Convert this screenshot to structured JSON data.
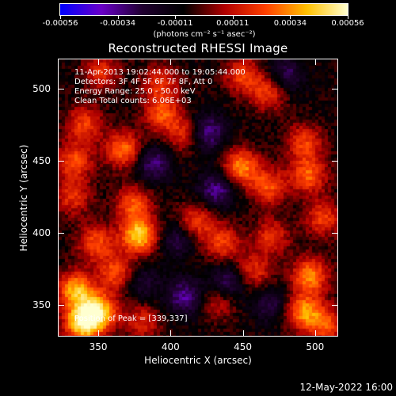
{
  "colorbar": {
    "tick_labels": [
      "-0.00056",
      "-0.00034",
      "-0.00011",
      "0.00011",
      "0.00034",
      "0.00056"
    ],
    "units": "(photons cm⁻² s⁻¹ asec⁻²)",
    "colors": [
      "#0000ff",
      "#6a00c8",
      "#200030",
      "#000000",
      "#b00000",
      "#ff4000",
      "#ffc000",
      "#ffffd0"
    ]
  },
  "plot": {
    "title": "Reconstructed RHESSI Image",
    "info_lines": [
      "11-Apr-2013 19:02:44.000 to 19:05:44.000",
      "Detectors: 3F 4F 5F 6F 7F 8F, Att 0",
      "Energy Range: 25.0 - 50.0 keV",
      "Clean     Total counts: 6.06E+03"
    ],
    "peak_text": "Position of Peak = [339,337]",
    "xlabel": "Heliocentric X (arcsec)",
    "ylabel": "Heliocentric Y (arcsec)"
  },
  "chart_data": {
    "type": "heatmap",
    "title": "Reconstructed RHESSI Image",
    "xlabel": "Heliocentric X (arcsec)",
    "ylabel": "Heliocentric Y (arcsec)",
    "xlim": [
      322,
      516
    ],
    "ylim": [
      328,
      521
    ],
    "xticks": [
      350,
      400,
      450,
      500
    ],
    "yticks": [
      350,
      400,
      450,
      500
    ],
    "color_range": [
      -0.00056,
      0.00056
    ],
    "peak_position": [
      339,
      337
    ],
    "blobs": [
      {
        "x": 339,
        "y": 337,
        "v": 1.0
      },
      {
        "x": 350,
        "y": 345,
        "v": 0.85
      },
      {
        "x": 334,
        "y": 360,
        "v": 0.8
      },
      {
        "x": 362,
        "y": 372,
        "v": 0.55
      },
      {
        "x": 348,
        "y": 393,
        "v": 0.55
      },
      {
        "x": 378,
        "y": 398,
        "v": 0.9
      },
      {
        "x": 374,
        "y": 420,
        "v": 0.55
      },
      {
        "x": 367,
        "y": 458,
        "v": 0.65
      },
      {
        "x": 333,
        "y": 450,
        "v": 0.55
      },
      {
        "x": 340,
        "y": 476,
        "v": 0.5
      },
      {
        "x": 394,
        "y": 483,
        "v": 0.55
      },
      {
        "x": 410,
        "y": 469,
        "v": 0.45
      },
      {
        "x": 418,
        "y": 408,
        "v": 0.5
      },
      {
        "x": 436,
        "y": 393,
        "v": 0.5
      },
      {
        "x": 449,
        "y": 446,
        "v": 0.7
      },
      {
        "x": 468,
        "y": 432,
        "v": 0.55
      },
      {
        "x": 493,
        "y": 463,
        "v": 0.5
      },
      {
        "x": 496,
        "y": 440,
        "v": 0.6
      },
      {
        "x": 506,
        "y": 410,
        "v": 0.5
      },
      {
        "x": 470,
        "y": 397,
        "v": 0.45
      },
      {
        "x": 458,
        "y": 373,
        "v": 0.45
      },
      {
        "x": 497,
        "y": 370,
        "v": 0.7
      },
      {
        "x": 492,
        "y": 345,
        "v": 0.7
      },
      {
        "x": 508,
        "y": 336,
        "v": 0.55
      },
      {
        "x": 380,
        "y": 338,
        "v": 0.4
      },
      {
        "x": 450,
        "y": 510,
        "v": 0.5
      },
      {
        "x": 468,
        "y": 498,
        "v": 0.5
      },
      {
        "x": 352,
        "y": 512,
        "v": 0.45
      },
      {
        "x": 393,
        "y": 505,
        "v": 0.45
      },
      {
        "x": 332,
        "y": 425,
        "v": 0.45
      },
      {
        "x": 433,
        "y": 352,
        "v": 0.35
      },
      {
        "x": 410,
        "y": 355,
        "v": -0.5
      },
      {
        "x": 425,
        "y": 470,
        "v": -0.55
      },
      {
        "x": 432,
        "y": 430,
        "v": -0.5
      },
      {
        "x": 388,
        "y": 448,
        "v": -0.45
      },
      {
        "x": 440,
        "y": 365,
        "v": -0.45
      },
      {
        "x": 480,
        "y": 510,
        "v": -0.4
      },
      {
        "x": 470,
        "y": 350,
        "v": -0.35
      },
      {
        "x": 380,
        "y": 365,
        "v": -0.3
      },
      {
        "x": 405,
        "y": 395,
        "v": -0.35
      }
    ]
  },
  "footer": {
    "date": "12-May-2022 16:00"
  }
}
